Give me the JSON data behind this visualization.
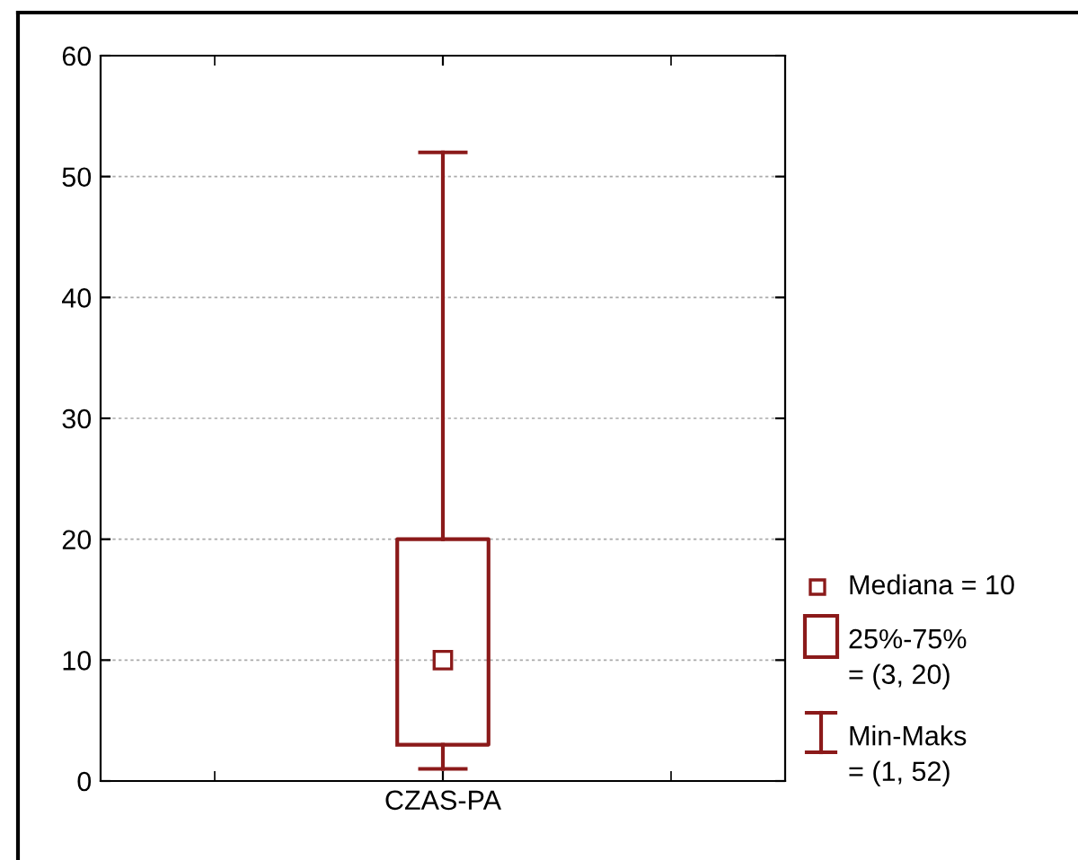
{
  "chart_data": {
    "type": "box",
    "categories": [
      "CZAS-PA"
    ],
    "boxes": [
      {
        "low": 1,
        "q1": 3,
        "median": 10,
        "q3": 20,
        "high": 52
      }
    ],
    "color": "#8b1a1a",
    "ylim": [
      0,
      60
    ],
    "yticks": [
      0,
      10,
      20,
      30,
      40,
      50,
      60
    ],
    "grid": "y",
    "marker": "square",
    "annotations": [
      "Mediana = 10",
      "25%-75%\n= (3, 20)",
      "Min-Maks\n= (1, 52)"
    ]
  }
}
